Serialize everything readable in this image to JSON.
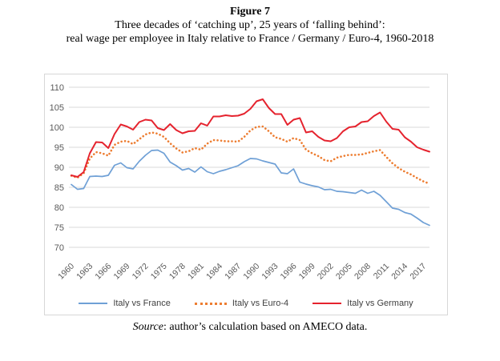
{
  "title": {
    "figure_label": "Figure 7",
    "line1": "Three decades of ‘catching up’, 25 years of ‘falling behind’:",
    "line2": "real wage per employee in Italy relative to France / Germany / Euro-4, 1960-2018"
  },
  "source": {
    "italic": "Source",
    "rest": ": author’s calculation based on AMECO data."
  },
  "colors": {
    "grid": "#d9d9d9",
    "axis_label": "#595959",
    "box_border": "#d7d7d7",
    "legend_text": "#404040"
  },
  "chart_data": {
    "type": "line",
    "title": "",
    "xlabel": "",
    "ylabel": "",
    "ylim": [
      70,
      110
    ],
    "y_ticks": [
      110,
      105,
      100,
      95,
      90,
      85,
      80,
      75,
      70
    ],
    "grid": "horizontal",
    "legend_position": "bottom",
    "x": [
      1960,
      1961,
      1962,
      1963,
      1964,
      1965,
      1966,
      1967,
      1968,
      1969,
      1970,
      1971,
      1972,
      1973,
      1974,
      1975,
      1976,
      1977,
      1978,
      1979,
      1980,
      1981,
      1982,
      1983,
      1984,
      1985,
      1986,
      1987,
      1988,
      1989,
      1990,
      1991,
      1992,
      1993,
      1994,
      1995,
      1996,
      1997,
      1998,
      1999,
      2000,
      2001,
      2002,
      2003,
      2004,
      2005,
      2006,
      2007,
      2008,
      2009,
      2010,
      2011,
      2012,
      2013,
      2014,
      2015,
      2016,
      2017,
      2018
    ],
    "x_tick_labels": [
      "1960",
      "1963",
      "1966",
      "1969",
      "1972",
      "1975",
      "1978",
      "1981",
      "1984",
      "1987",
      "1990",
      "1993",
      "1996",
      "1999",
      "2002",
      "2005",
      "2008",
      "2011",
      "2014",
      "2017"
    ],
    "series": [
      {
        "name": "Italy vs France",
        "color": "#6FA0D6",
        "style": "solid",
        "values": [
          85.7,
          84.5,
          84.7,
          87.7,
          87.8,
          87.7,
          88.0,
          90.5,
          91.1,
          89.9,
          89.6,
          91.5,
          93.0,
          94.2,
          94.3,
          93.5,
          91.3,
          90.4,
          89.3,
          89.7,
          88.8,
          90.1,
          88.9,
          88.4,
          89.0,
          89.4,
          89.9,
          90.4,
          91.4,
          92.2,
          92.1,
          91.6,
          91.2,
          90.8,
          88.6,
          88.4,
          89.6,
          86.3,
          85.8,
          85.4,
          85.1,
          84.4,
          84.5,
          84.0,
          83.9,
          83.7,
          83.5,
          84.3,
          83.5,
          84.0,
          83.0,
          81.4,
          79.8,
          79.5,
          78.7,
          78.3,
          77.3,
          76.2,
          75.5
        ]
      },
      {
        "name": "Italy vs Euro-4",
        "color": "#ED7D31",
        "style": "dotted",
        "values": [
          87.9,
          87.4,
          88.5,
          92.2,
          93.8,
          93.5,
          92.9,
          95.6,
          96.4,
          96.6,
          95.8,
          97.0,
          98.2,
          98.7,
          98.4,
          97.6,
          96.0,
          94.7,
          93.7,
          94.0,
          94.8,
          94.4,
          95.9,
          96.8,
          96.7,
          96.5,
          96.5,
          96.4,
          97.6,
          99.2,
          100.1,
          100.2,
          99.0,
          97.5,
          97.1,
          96.4,
          97.3,
          96.8,
          94.4,
          93.5,
          92.8,
          91.8,
          91.5,
          92.4,
          92.8,
          93.1,
          93.1,
          93.2,
          93.6,
          94.0,
          94.3,
          92.6,
          91.0,
          89.8,
          88.9,
          88.2,
          87.3,
          86.5,
          85.9
        ]
      },
      {
        "name": "Italy vs Germany",
        "color": "#E5232E",
        "style": "solid",
        "values": [
          88.0,
          87.6,
          88.8,
          93.5,
          96.3,
          96.2,
          94.8,
          98.3,
          100.7,
          100.2,
          99.4,
          101.3,
          101.9,
          101.7,
          99.8,
          99.3,
          100.8,
          99.3,
          98.5,
          99.0,
          99.1,
          101.0,
          100.4,
          102.7,
          102.7,
          103.0,
          102.8,
          102.9,
          103.4,
          104.6,
          106.5,
          107.0,
          104.8,
          103.3,
          103.3,
          100.6,
          101.9,
          102.3,
          98.7,
          99.0,
          97.6,
          96.7,
          96.5,
          97.3,
          99.0,
          100.0,
          100.2,
          101.3,
          101.5,
          102.8,
          103.7,
          101.4,
          99.6,
          99.4,
          97.5,
          96.4,
          95.0,
          94.4,
          93.9
        ]
      }
    ]
  }
}
